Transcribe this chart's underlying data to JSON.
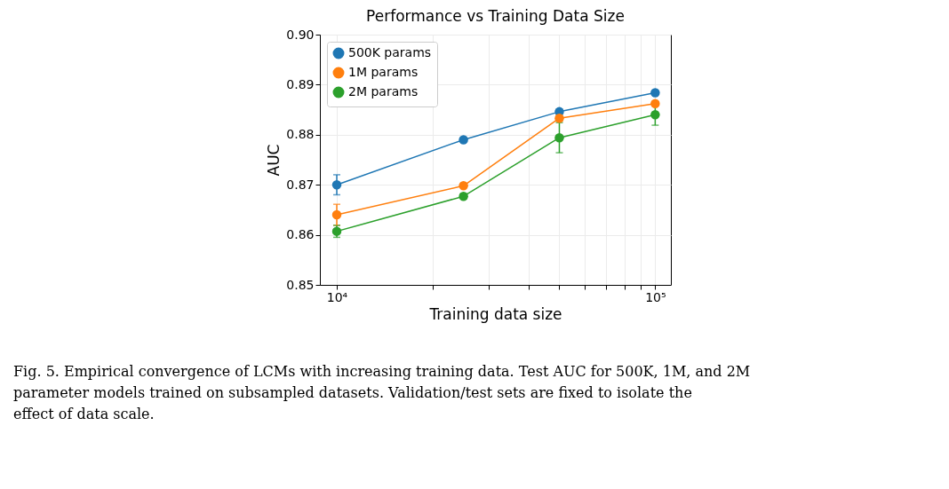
{
  "chart_data": {
    "type": "line",
    "title": "Performance vs Training Data Size",
    "xlabel": "Training data size",
    "ylabel": "AUC",
    "x": [
      10000,
      25000,
      50000,
      100000
    ],
    "series": [
      {
        "name": "500K params",
        "color": "#1f77b4",
        "values": [
          0.87,
          0.879,
          0.8846,
          0.8884
        ],
        "errors": [
          0.002,
          0.0003,
          0.0003,
          0.0003
        ]
      },
      {
        "name": "1M params",
        "color": "#ff7f0e",
        "values": [
          0.864,
          0.8698,
          0.8833,
          0.8862
        ],
        "errors": [
          0.0021,
          0.0003,
          0.0006,
          0.0003
        ]
      },
      {
        "name": "2M params",
        "color": "#2ca02c",
        "values": [
          0.8607,
          0.8677,
          0.8794,
          0.884
        ],
        "errors": [
          0.0012,
          0.0005,
          0.003,
          0.0021
        ]
      }
    ],
    "log": "x",
    "xlim": [
      8850,
      112000
    ],
    "xticks": [
      {
        "value": 10000,
        "label": "10⁴"
      },
      {
        "value": 20000,
        "label": null
      },
      {
        "value": 30000,
        "label": null
      },
      {
        "value": 40000,
        "label": null
      },
      {
        "value": 50000,
        "label": null
      },
      {
        "value": 60000,
        "label": null
      },
      {
        "value": 70000,
        "label": null
      },
      {
        "value": 80000,
        "label": null
      },
      {
        "value": 90000,
        "label": null
      },
      {
        "value": 100000,
        "label": "10⁵"
      }
    ],
    "ylim": [
      0.85,
      0.9
    ],
    "yticks": [
      0.85,
      0.86,
      0.87,
      0.88,
      0.89,
      {
        "value": 0.9,
        "label": "0.90"
      }
    ],
    "grid": true,
    "legend": "top left",
    "marker": "circle",
    "line_style": "solid",
    "annotations": [
      "Fig. 5. Empirical convergence of LCMs with increasing training data. Test AUC for 500K, 1M, and 2M parameter models trained on subsampled datasets. Validation/test sets are fixed to isolate the effect of data scale."
    ]
  }
}
